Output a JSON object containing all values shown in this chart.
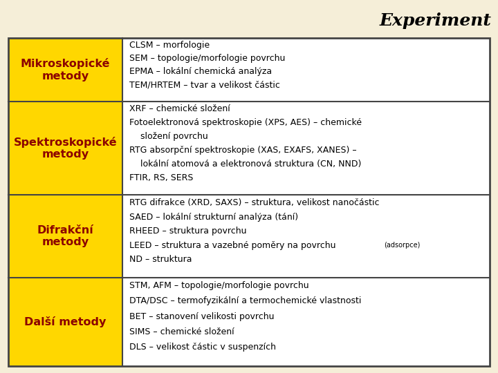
{
  "title": "Experiment",
  "title_fontsize": 18,
  "title_color": "#000000",
  "title_style": "italic",
  "title_weight": "bold",
  "background_color": "#f5eed8",
  "table_bg": "#ffffff",
  "left_col_color": "#FFD700",
  "border_color": "#444444",
  "left_col_text_color": "#8B0000",
  "right_col_text_color": "#000000",
  "rows": [
    {
      "left": "Mikroskopické\nmetody",
      "right_lines": [
        [
          "CLSM – morfologie",
          9.0,
          false
        ],
        [
          "SEM – topologie/morfologie povrchu",
          9.0,
          false
        ],
        [
          "EPMA – lokální chemická analýza",
          9.0,
          false
        ],
        [
          "TEM/HRTEM – tvar a velikost částic",
          9.0,
          false
        ]
      ]
    },
    {
      "left": "Spektroskopické\nmetody",
      "right_lines": [
        [
          "XRF – chemické složení",
          9.0,
          false
        ],
        [
          "Fotoelektronová spektroskopie (XPS, AES) – chemické",
          9.0,
          false
        ],
        [
          "    složení povrchu",
          9.0,
          false
        ],
        [
          "RTG absorpční spektroskopie (XAS, EXAFS, XANES) –",
          9.0,
          false
        ],
        [
          "    lokální atomová a elektronová struktura (CN, NND)",
          9.0,
          false
        ],
        [
          "FTIR, RS, SERS",
          9.0,
          false
        ]
      ]
    },
    {
      "left": "Difrakční\nmetody",
      "right_lines": [
        [
          "RTG difrakce (XRD, SAXS) – struktura, velikost nanočástic",
          9.0,
          false
        ],
        [
          "SAED – lokální strukturní analýza (tání)",
          9.0,
          false
        ],
        [
          "RHEED – struktura povrchu",
          9.0,
          false
        ],
        [
          "LEED – struktura a vazebné poměry na povrchu",
          9.0,
          "adsorpce"
        ],
        [
          "ND – struktura",
          9.0,
          false
        ]
      ]
    },
    {
      "left": "Další metody",
      "right_lines": [
        [
          "STM, AFM – topologie/morfologie povrchu",
          9.0,
          false
        ],
        [
          "DTA/DSC – termofyzikální a termochemické vlastnosti",
          9.0,
          false
        ],
        [
          "BET – stanovení velikosti povrchu",
          9.0,
          false
        ],
        [
          "SIMS – chemické složení",
          9.0,
          false
        ],
        [
          "DLS – velikost částic v suspenzích",
          9.0,
          false
        ]
      ]
    }
  ]
}
